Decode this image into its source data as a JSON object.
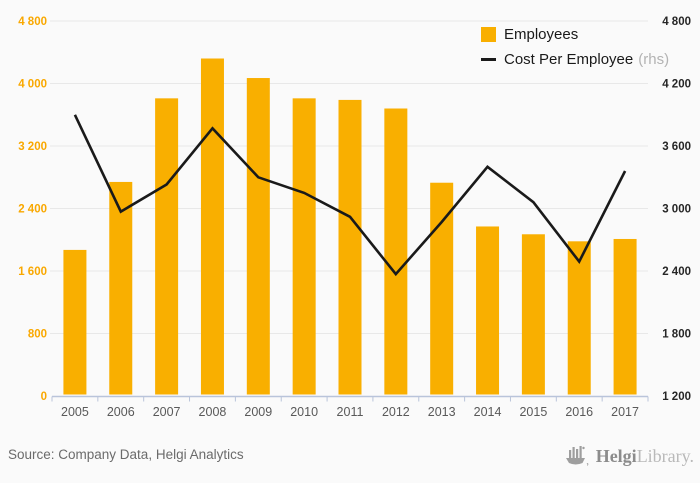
{
  "page": {
    "background": "#fafafa"
  },
  "legend": {
    "employees_label": "Employees",
    "cost_label": "Cost Per Employee",
    "cost_suffix": "(rhs)"
  },
  "footer": {
    "source": "Source: Company Data, Helgi Analytics",
    "brand_bold": "Helgi",
    "brand_light": "Library."
  },
  "chart_data": {
    "type": "bar",
    "subtype": "bar-with-line-overlay",
    "title": "",
    "categories": [
      "2005",
      "2006",
      "2007",
      "2008",
      "2009",
      "2010",
      "2011",
      "2012",
      "2013",
      "2014",
      "2015",
      "2016",
      "2017"
    ],
    "series": [
      {
        "name": "Employees",
        "type": "bar",
        "axis": "left",
        "values": [
          1870,
          2740,
          3810,
          4320,
          4070,
          3810,
          3790,
          3680,
          2730,
          2170,
          2070,
          1980,
          2010
        ]
      },
      {
        "name": "Cost Per Employee (rhs)",
        "type": "line",
        "axis": "right",
        "values": [
          3900,
          2970,
          3230,
          3770,
          3300,
          3150,
          2920,
          2370,
          2870,
          3400,
          3060,
          2490,
          3360
        ]
      }
    ],
    "left_axis": {
      "min": 0,
      "max": 4800,
      "tick_values": [
        4800,
        4000,
        3200,
        2400,
        1600,
        800,
        0
      ],
      "tick_labels": [
        "4 800",
        "4 000",
        "3 200",
        "2 400",
        "1 600",
        "800",
        "0"
      ]
    },
    "right_axis": {
      "min": 1200,
      "max": 4800,
      "tick_values": [
        4800,
        4200,
        3600,
        3000,
        2400,
        1800,
        1200
      ],
      "tick_labels": [
        "4 800",
        "4 200",
        "3 600",
        "3 000",
        "2 400",
        "1 800",
        "1 200"
      ]
    },
    "grid": true,
    "legend_position": "top-right",
    "colors": {
      "bar": "#f9af00",
      "line": "#1a1a1a",
      "left_tick_label": "#f9a800",
      "right_tick_label": "#262626",
      "year_label": "#595959",
      "gridline": "#e8e8e8",
      "axis_line": "#b9c4da"
    }
  }
}
